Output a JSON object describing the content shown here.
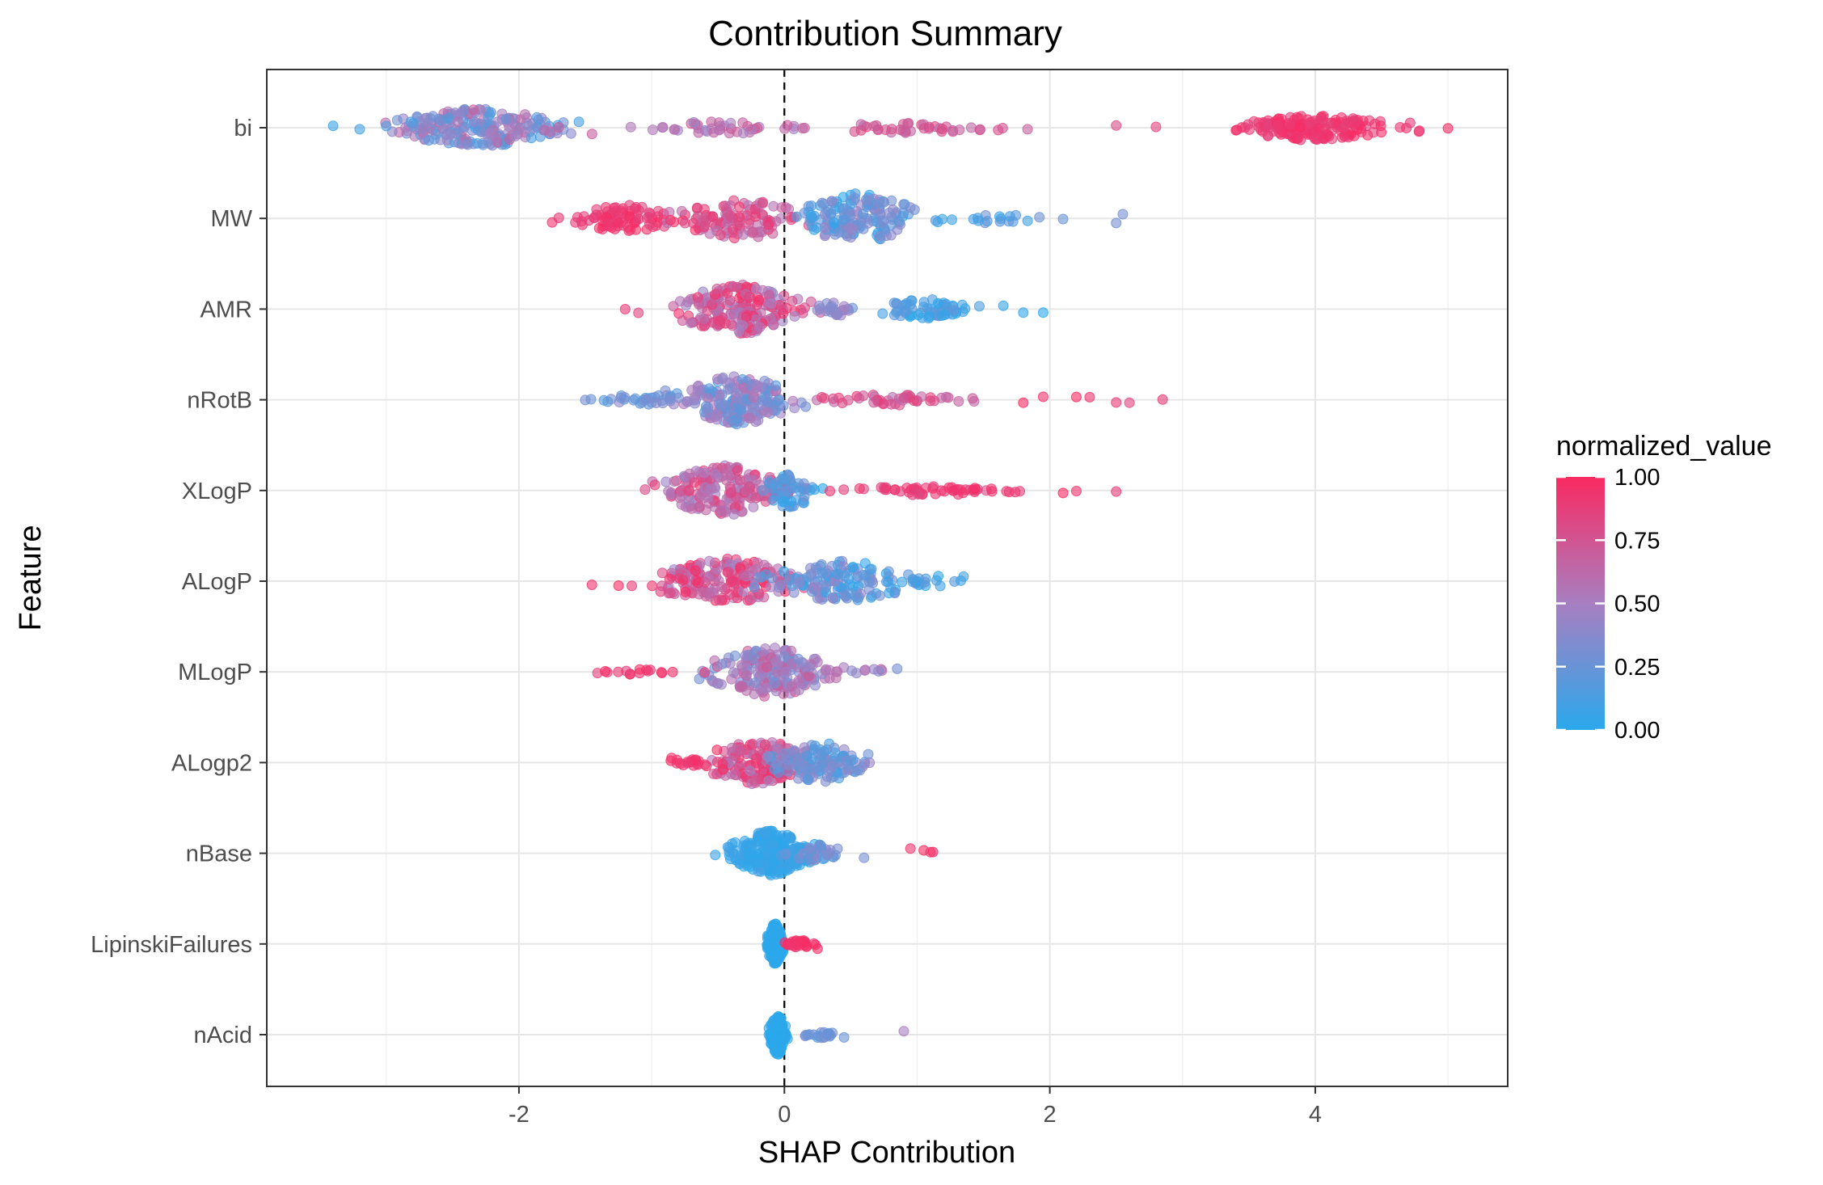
{
  "chart_data": {
    "type": "scatter",
    "subtype": "beeswarm",
    "title": "Contribution Summary",
    "xlabel": "SHAP Contribution",
    "ylabel": "Feature",
    "xlim": [
      -3.9,
      5.45
    ],
    "x_major_ticks": [
      -2,
      0,
      2,
      4
    ],
    "x_minor_ticks": [
      -3,
      -1,
      1,
      3,
      5
    ],
    "grid": true,
    "reference_line": {
      "x": 0,
      "style": "dashed"
    },
    "colors": {
      "low": "#2aa8ec",
      "mid": "#a77fc1",
      "high": "#fa2a62"
    },
    "legend": {
      "title": "normalized_value",
      "position": "right",
      "breaks": [
        "1.00",
        "0.75",
        "0.50",
        "0.25",
        "0.00"
      ]
    },
    "features": [
      {
        "name": "bi",
        "clusters": [
          {
            "center": -2.3,
            "spread": 0.55,
            "height": 0.42,
            "n": 210,
            "vmin": 0.1,
            "vmax": 0.7
          },
          {
            "center": -0.5,
            "spread": 0.45,
            "height": 0.14,
            "n": 40,
            "vmin": 0.45,
            "vmax": 0.75
          },
          {
            "center": 0.9,
            "spread": 0.6,
            "height": 0.12,
            "n": 40,
            "vmin": 0.6,
            "vmax": 0.85
          },
          {
            "center": 4.0,
            "spread": 0.5,
            "height": 0.28,
            "n": 170,
            "vmin": 0.85,
            "vmax": 1.0
          }
        ],
        "outliers": [
          [
            -3.4,
            0.05
          ],
          [
            -3.2,
            0.1
          ],
          [
            -3.0,
            0.15
          ],
          [
            2.5,
            0.8
          ],
          [
            2.8,
            0.85
          ],
          [
            5.0,
            1.0
          ]
        ]
      },
      {
        "name": "MW",
        "clusters": [
          {
            "center": -1.2,
            "spread": 0.35,
            "height": 0.3,
            "n": 80,
            "vmin": 0.85,
            "vmax": 1.0
          },
          {
            "center": -0.3,
            "spread": 0.45,
            "height": 0.45,
            "n": 110,
            "vmin": 0.55,
            "vmax": 0.95
          },
          {
            "center": 0.55,
            "spread": 0.4,
            "height": 0.55,
            "n": 150,
            "vmin": 0.0,
            "vmax": 0.45
          },
          {
            "center": 1.5,
            "spread": 0.35,
            "height": 0.12,
            "n": 18,
            "vmin": 0.05,
            "vmax": 0.3
          }
        ],
        "outliers": [
          [
            -1.75,
            0.95
          ],
          [
            -1.7,
            0.9
          ],
          [
            2.1,
            0.25
          ],
          [
            2.5,
            0.3
          ],
          [
            2.55,
            0.3
          ]
        ]
      },
      {
        "name": "AMR",
        "clusters": [
          {
            "center": -0.35,
            "spread": 0.4,
            "height": 0.55,
            "n": 200,
            "vmin": 0.4,
            "vmax": 1.0
          },
          {
            "center": 0.4,
            "spread": 0.2,
            "height": 0.15,
            "n": 25,
            "vmin": 0.25,
            "vmax": 0.5
          },
          {
            "center": 1.05,
            "spread": 0.3,
            "height": 0.22,
            "n": 60,
            "vmin": 0.0,
            "vmax": 0.25
          }
        ],
        "outliers": [
          [
            -1.2,
            0.9
          ],
          [
            1.65,
            0.05
          ],
          [
            1.8,
            0.02
          ],
          [
            1.95,
            0.0
          ],
          [
            -1.1,
            0.85
          ]
        ]
      },
      {
        "name": "nRotB",
        "clusters": [
          {
            "center": -0.35,
            "spread": 0.35,
            "height": 0.55,
            "n": 200,
            "vmin": 0.15,
            "vmax": 0.6
          },
          {
            "center": -1.1,
            "spread": 0.3,
            "height": 0.12,
            "n": 30,
            "vmin": 0.15,
            "vmax": 0.4
          },
          {
            "center": 0.8,
            "spread": 0.5,
            "height": 0.12,
            "n": 45,
            "vmin": 0.6,
            "vmax": 0.9
          }
        ],
        "outliers": [
          [
            -1.5,
            0.3
          ],
          [
            1.8,
            1.0
          ],
          [
            1.95,
            0.95
          ],
          [
            2.2,
            1.0
          ],
          [
            2.3,
            0.95
          ],
          [
            2.5,
            0.9
          ],
          [
            2.6,
            0.85
          ],
          [
            2.85,
            0.9
          ]
        ]
      },
      {
        "name": "XLogP",
        "clusters": [
          {
            "center": -0.45,
            "spread": 0.4,
            "height": 0.55,
            "n": 180,
            "vmin": 0.45,
            "vmax": 0.9
          },
          {
            "center": 0.05,
            "spread": 0.15,
            "height": 0.4,
            "n": 50,
            "vmin": 0.0,
            "vmax": 0.3
          },
          {
            "center": 1.1,
            "spread": 0.55,
            "height": 0.1,
            "n": 55,
            "vmin": 0.8,
            "vmax": 1.0
          }
        ],
        "outliers": [
          [
            -1.05,
            0.8
          ],
          [
            2.1,
            1.0
          ],
          [
            2.2,
            0.95
          ],
          [
            2.5,
            0.9
          ]
        ]
      },
      {
        "name": "ALogP",
        "clusters": [
          {
            "center": -0.45,
            "spread": 0.5,
            "height": 0.5,
            "n": 180,
            "vmin": 0.45,
            "vmax": 1.0
          },
          {
            "center": 0.45,
            "spread": 0.45,
            "height": 0.45,
            "n": 130,
            "vmin": 0.0,
            "vmax": 0.45
          },
          {
            "center": 1.1,
            "spread": 0.25,
            "height": 0.12,
            "n": 18,
            "vmin": 0.0,
            "vmax": 0.25
          }
        ],
        "outliers": [
          [
            -1.45,
            0.95
          ],
          [
            -1.25,
            1.0
          ],
          [
            -1.15,
            0.9
          ],
          [
            1.35,
            0.1
          ]
        ]
      },
      {
        "name": "MLogP",
        "clusters": [
          {
            "center": -0.1,
            "spread": 0.4,
            "height": 0.55,
            "n": 190,
            "vmin": 0.25,
            "vmax": 0.75
          },
          {
            "center": -1.1,
            "spread": 0.25,
            "height": 0.06,
            "n": 14,
            "vmin": 0.85,
            "vmax": 1.0
          },
          {
            "center": 0.5,
            "spread": 0.25,
            "height": 0.12,
            "n": 15,
            "vmin": 0.35,
            "vmax": 0.65
          }
        ],
        "outliers": [
          [
            -1.35,
            1.0
          ],
          [
            -0.6,
            0.85
          ],
          [
            0.85,
            0.3
          ]
        ]
      },
      {
        "name": "ALogp2",
        "clusters": [
          {
            "center": -0.2,
            "spread": 0.35,
            "height": 0.5,
            "n": 150,
            "vmin": 0.5,
            "vmax": 1.0
          },
          {
            "center": 0.25,
            "spread": 0.3,
            "height": 0.45,
            "n": 120,
            "vmin": 0.1,
            "vmax": 0.45
          },
          {
            "center": -0.7,
            "spread": 0.2,
            "height": 0.08,
            "n": 18,
            "vmin": 0.85,
            "vmax": 1.0
          }
        ],
        "outliers": [
          [
            -0.85,
            0.95
          ],
          [
            0.5,
            0.2
          ]
        ]
      },
      {
        "name": "nBase",
        "clusters": [
          {
            "center": -0.1,
            "spread": 0.25,
            "height": 0.5,
            "n": 230,
            "vmin": 0.0,
            "vmax": 0.12
          },
          {
            "center": 0.25,
            "spread": 0.2,
            "height": 0.2,
            "n": 30,
            "vmin": 0.15,
            "vmax": 0.4
          }
        ],
        "outliers": [
          [
            0.6,
            0.3
          ],
          [
            0.95,
            0.95
          ],
          [
            1.05,
            1.0
          ],
          [
            1.1,
            0.9
          ],
          [
            1.12,
            1.0
          ]
        ]
      },
      {
        "name": "LipinskiFailures",
        "clusters": [
          {
            "center": -0.07,
            "spread": 0.05,
            "height": 0.45,
            "n": 180,
            "vmin": 0.0,
            "vmax": 0.02
          },
          {
            "center": 0.12,
            "spread": 0.1,
            "height": 0.08,
            "n": 30,
            "vmin": 0.92,
            "vmax": 1.0
          }
        ],
        "outliers": [
          [
            0.25,
            1.0
          ]
        ]
      },
      {
        "name": "nAcid",
        "clusters": [
          {
            "center": -0.05,
            "spread": 0.05,
            "height": 0.45,
            "n": 180,
            "vmin": 0.0,
            "vmax": 0.02
          },
          {
            "center": 0.28,
            "spread": 0.12,
            "height": 0.07,
            "n": 20,
            "vmin": 0.15,
            "vmax": 0.35
          }
        ],
        "outliers": [
          [
            0.9,
            0.5
          ],
          [
            0.45,
            0.25
          ]
        ]
      }
    ]
  }
}
